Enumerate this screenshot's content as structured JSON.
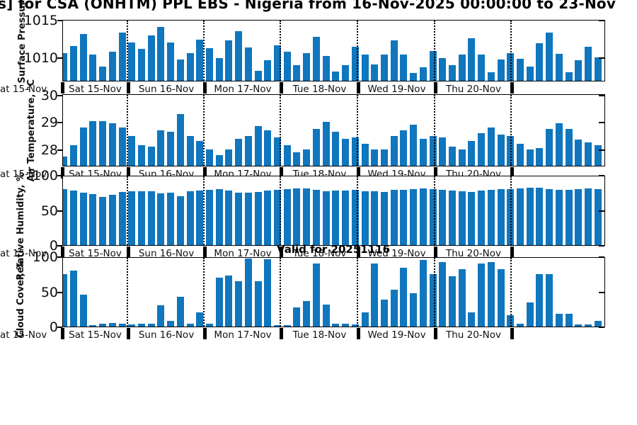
{
  "title": "s] for CSA (ONHTM) PPL EBS  - Nigeria from 16-Nov-2025 00:00:00 to 23-Nov",
  "valid_label": "Valid for 20251116",
  "bar_color": "#1076bd",
  "x_axis": {
    "day_labels": [
      "Sat 15-Nov",
      "Sun 16-Nov",
      "Mon 17-Nov",
      "Tue 18-Nov",
      "Wed 19-Nov",
      "Thu 20-Nov"
    ],
    "clipped_left_label": "at 15-Nov"
  },
  "chart_data": [
    {
      "type": "bar",
      "ylabel": "Surface Pressure, mb",
      "yticks": [
        1015,
        1010
      ],
      "ylim": [
        1006.9,
        1015.05
      ],
      "values": [
        1010.6,
        1011.5,
        1013.1,
        1010.4,
        1008.8,
        1010.7,
        1013.3,
        1012.0,
        1011.1,
        1012.9,
        1014.0,
        1012.0,
        1009.7,
        1010.6,
        1012.3,
        1011.2,
        1009.9,
        1012.2,
        1013.5,
        1011.3,
        1008.2,
        1009.6,
        1011.6,
        1010.7,
        1009.0,
        1010.6,
        1012.7,
        1010.2,
        1008.1,
        1009.0,
        1011.4,
        1010.4,
        1009.1,
        1010.4,
        1012.2,
        1010.4,
        1007.9,
        1008.7,
        1010.8,
        1009.9,
        1009.0,
        1010.4,
        1012.5,
        1010.4,
        1008.0,
        1009.7,
        1010.6,
        1009.8,
        1008.8,
        1011.9,
        1013.3,
        1010.5,
        1008.0,
        1009.6,
        1011.4,
        1010.0
      ]
    },
    {
      "type": "bar",
      "ylabel": "Air Temperature, °C",
      "yticks": [
        30,
        29,
        28
      ],
      "ylim": [
        27.4,
        30.05
      ],
      "values": [
        27.75,
        28.15,
        28.8,
        29.05,
        29.05,
        28.95,
        28.8,
        28.5,
        28.15,
        28.1,
        28.7,
        28.65,
        29.3,
        28.5,
        28.3,
        28.0,
        27.8,
        28.0,
        28.4,
        28.5,
        28.85,
        28.7,
        28.45,
        28.15,
        27.9,
        28.0,
        28.75,
        29.0,
        28.65,
        28.4,
        28.45,
        28.2,
        28.0,
        28.0,
        28.5,
        28.7,
        28.9,
        28.4,
        28.5,
        28.45,
        28.1,
        28.0,
        28.3,
        28.6,
        28.8,
        28.55,
        28.5,
        28.2,
        28.0,
        28.05,
        28.75,
        28.95,
        28.75,
        28.35,
        28.25,
        28.15
      ]
    },
    {
      "type": "bar",
      "ylabel": "Relative Humidity, %",
      "yticks": [
        100,
        50,
        0
      ],
      "ylim": [
        0,
        100
      ],
      "values": [
        80,
        78,
        75,
        73,
        69,
        72,
        76,
        77,
        77,
        77,
        74,
        75,
        70,
        77,
        78,
        79,
        80,
        78,
        75,
        75,
        76,
        78,
        79,
        80,
        81,
        81,
        79,
        77,
        78,
        78,
        79,
        77,
        77,
        76,
        79,
        79,
        80,
        81,
        80,
        79,
        78,
        77,
        76,
        78,
        79,
        80,
        80,
        81,
        82,
        82,
        80,
        79,
        79,
        80,
        81,
        80
      ]
    },
    {
      "type": "bar",
      "ylabel": "Cloud Cover, %",
      "yticks": [
        100,
        50,
        0
      ],
      "ylim": [
        0,
        100
      ],
      "values": [
        75,
        80,
        45,
        2,
        4,
        5,
        4,
        3,
        4,
        4,
        30,
        8,
        42,
        4,
        20,
        4,
        70,
        73,
        65,
        97,
        65,
        96,
        2,
        2,
        27,
        36,
        90,
        31,
        4,
        4,
        3,
        20,
        90,
        38,
        53,
        84,
        47,
        95,
        75,
        92,
        72,
        82,
        20,
        90,
        92,
        82,
        16,
        4,
        34,
        75,
        75,
        18,
        18,
        3,
        3,
        8
      ]
    }
  ]
}
